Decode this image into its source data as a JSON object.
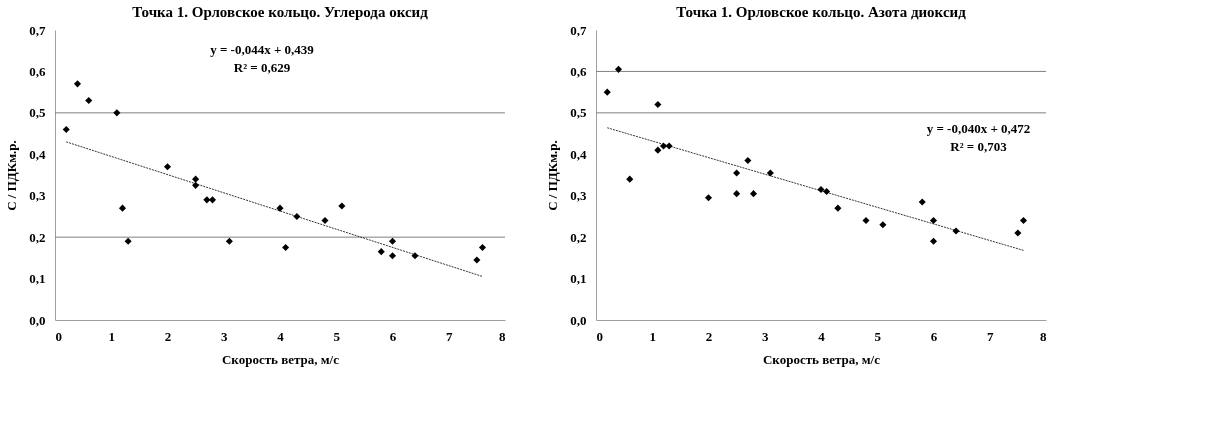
{
  "chart_data": [
    {
      "type": "scatter",
      "title": "Точка 1. Орловское кольцо. Углерода оксид",
      "xlabel": "Скорость ветра, м/с",
      "ylabel": "С / ПДКм.р.",
      "annotations": [
        "y = -0,044x + 0,439",
        "R² = 0,629"
      ],
      "xlim": [
        0,
        8
      ],
      "xticks": [
        0,
        1,
        2,
        3,
        4,
        5,
        6,
        7,
        8
      ],
      "ylim": [
        0,
        0.7
      ],
      "yticks": [
        {
          "value": 0,
          "label": "0,0"
        },
        {
          "value": 0.1,
          "label": "0,1"
        },
        {
          "value": 0.2,
          "label": "0,2"
        },
        {
          "value": 0.3,
          "label": "0,3"
        },
        {
          "value": 0.4,
          "label": "0,4"
        },
        {
          "value": 0.5,
          "label": "0,5"
        },
        {
          "value": 0.6,
          "label": "0,6"
        },
        {
          "value": 0.7,
          "label": "0,7"
        }
      ],
      "grid": false,
      "marker": "diamond",
      "ref_lines": [
        {
          "axis": "y",
          "value": 0.5,
          "color": "#808080"
        },
        {
          "axis": "y",
          "value": 0.2,
          "color": "#808080"
        }
      ],
      "series": [
        {
          "type": "scatter",
          "color": "#000000",
          "x": [
            0.2,
            0.4,
            0.6,
            1.1,
            1.2,
            1.3,
            2.0,
            2.5,
            2.5,
            2.7,
            2.8,
            3.1,
            4.0,
            4.1,
            4.3,
            4.8,
            5.1,
            5.8,
            6.0,
            6.0,
            6.4,
            7.5,
            7.6
          ],
          "values": [
            0.46,
            0.57,
            0.53,
            0.5,
            0.27,
            0.19,
            0.37,
            0.34,
            0.325,
            0.29,
            0.29,
            0.19,
            0.27,
            0.175,
            0.25,
            0.24,
            0.275,
            0.165,
            0.19,
            0.155,
            0.155,
            0.145,
            0.175
          ]
        },
        {
          "type": "line",
          "color": "#000000",
          "line_style": "dashed",
          "marker": "none",
          "x": [
            0.2,
            7.6
          ],
          "values": [
            0.43,
            0.105
          ]
        }
      ]
    },
    {
      "type": "scatter",
      "title": "Точка 1. Орловское кольцо. Азота диоксид",
      "xlabel": "Скорость ветра, м/с",
      "ylabel": "С / ПДКм.р.",
      "annotations": [
        "y = -0,040x + 0,472",
        "R² = 0,703"
      ],
      "xlim": [
        0,
        8
      ],
      "xticks": [
        0,
        1,
        2,
        3,
        4,
        5,
        6,
        7,
        8
      ],
      "ylim": [
        0,
        0.7
      ],
      "yticks": [
        {
          "value": 0,
          "label": "0,0"
        },
        {
          "value": 0.1,
          "label": "0,1"
        },
        {
          "value": 0.2,
          "label": "0,2"
        },
        {
          "value": 0.3,
          "label": "0,3"
        },
        {
          "value": 0.4,
          "label": "0,4"
        },
        {
          "value": 0.5,
          "label": "0,5"
        },
        {
          "value": 0.6,
          "label": "0,6"
        },
        {
          "value": 0.7,
          "label": "0,7"
        }
      ],
      "grid": false,
      "marker": "diamond",
      "ref_lines": [
        {
          "axis": "y",
          "value": 0.6,
          "color": "#808080"
        },
        {
          "axis": "y",
          "value": 0.5,
          "color": "#808080"
        }
      ],
      "series": [
        {
          "type": "scatter",
          "color": "#000000",
          "x": [
            0.2,
            0.4,
            0.6,
            1.1,
            1.1,
            1.2,
            1.3,
            2.0,
            2.5,
            2.5,
            2.7,
            2.8,
            3.1,
            4.0,
            4.1,
            4.3,
            4.8,
            5.1,
            5.8,
            6.0,
            6.0,
            6.4,
            7.5,
            7.6
          ],
          "values": [
            0.55,
            0.605,
            0.34,
            0.52,
            0.41,
            0.42,
            0.42,
            0.295,
            0.355,
            0.305,
            0.385,
            0.305,
            0.355,
            0.315,
            0.31,
            0.27,
            0.24,
            0.23,
            0.285,
            0.24,
            0.19,
            0.215,
            0.21,
            0.24
          ]
        },
        {
          "type": "line",
          "color": "#000000",
          "line_style": "dashed",
          "marker": "none",
          "x": [
            0.2,
            7.6
          ],
          "values": [
            0.464,
            0.168
          ]
        }
      ]
    }
  ]
}
